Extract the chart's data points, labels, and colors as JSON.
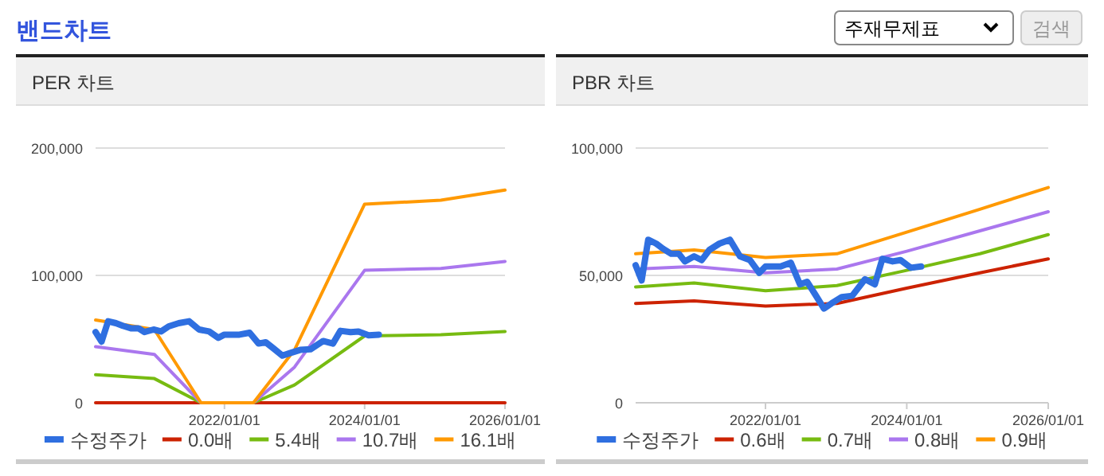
{
  "chart_data": [
    {
      "type": "other",
      "title": "밴드차트",
      "annotations": [
        "주재무제표",
        "검색"
      ]
    },
    {
      "type": "line",
      "title": "PER 차트",
      "legend": "bottom",
      "grid": "y",
      "xlim": [
        "2020-03-01",
        "2026-01-01"
      ],
      "ylim": [
        0,
        200000
      ],
      "yticks": [
        0,
        {
          "value": 100000,
          "label": "100,000"
        },
        {
          "value": 200000,
          "label": "200,000"
        }
      ],
      "xticks": [
        {
          "value": "2022-01-01",
          "label": "2022/01/01"
        },
        {
          "value": "2024-01-01",
          "label": "2024/01/01"
        },
        {
          "value": "2026-01-01",
          "label": "2026/01/01"
        }
      ],
      "series": [
        {
          "name": "수정주가",
          "color": "#2f6fe0",
          "x": [
            "2020-03-01",
            "2020-04-01",
            "2020-05-05",
            "2020-06-15",
            "2020-07-20",
            "2020-09-01",
            "2020-10-10",
            "2020-11-10",
            "2020-12-28",
            "2021-02-05",
            "2021-03-17",
            "2021-05-08",
            "2021-07-01",
            "2021-08-22",
            "2021-10-13",
            "2021-11-30",
            "2022-01-01",
            "2022-03-20",
            "2022-05-12",
            "2022-06-28",
            "2022-08-04",
            "2022-09-15",
            "2022-10-30",
            "2022-12-08",
            "2023-01-30",
            "2023-03-25",
            "2023-05-30",
            "2023-07-20",
            "2023-08-28",
            "2023-10-20",
            "2023-11-30",
            "2024-01-22",
            "2024-03-15"
          ],
          "values": [
            55500,
            48000,
            64000,
            62500,
            60500,
            58500,
            58500,
            55500,
            57500,
            56000,
            60000,
            62500,
            64000,
            57500,
            56000,
            51000,
            53500,
            53500,
            55000,
            46500,
            47500,
            42500,
            37000,
            39000,
            41500,
            42000,
            48500,
            46500,
            56500,
            55500,
            56000,
            53000,
            53500
          ]
        },
        {
          "name": "0.0배",
          "color": "#cc2200",
          "x": [
            "2020-03-01",
            "2021-01-01",
            "2021-09-01",
            "2022-06-01",
            "2023-01-01",
            "2024-01-01",
            "2025-02-01",
            "2026-01-01"
          ],
          "values": [
            0,
            0,
            0,
            0,
            0,
            0,
            0,
            0
          ]
        },
        {
          "name": "5.4배",
          "color": "#77bb11",
          "x": [
            "2020-03-01",
            "2021-01-01",
            "2021-09-01",
            "2022-06-01",
            "2023-01-01",
            "2024-01-01",
            "2025-02-01",
            "2026-01-01"
          ],
          "values": [
            22000,
            19000,
            0,
            0,
            14000,
            52500,
            53500,
            56000
          ]
        },
        {
          "name": "10.7배",
          "color": "#aa77ee",
          "x": [
            "2020-03-01",
            "2021-01-01",
            "2021-09-01",
            "2022-06-01",
            "2023-01-01",
            "2024-01-01",
            "2025-02-01",
            "2026-01-01"
          ],
          "values": [
            44000,
            38000,
            0,
            0,
            28000,
            104000,
            105500,
            111000
          ]
        },
        {
          "name": "16.1배",
          "color": "#ff9900",
          "x": [
            "2020-03-01",
            "2021-01-01",
            "2021-09-01",
            "2022-06-01",
            "2023-01-01",
            "2024-01-01",
            "2025-02-01",
            "2026-01-01"
          ],
          "values": [
            65000,
            57500,
            0,
            0,
            41500,
            156000,
            159000,
            167000
          ]
        }
      ]
    },
    {
      "type": "line",
      "title": "PBR 차트",
      "legend": "bottom",
      "grid": "y",
      "xlim": [
        "2020-03-01",
        "2026-01-01"
      ],
      "ylim": [
        0,
        100000
      ],
      "yticks": [
        0,
        {
          "value": 50000,
          "label": "50,000"
        },
        {
          "value": 100000,
          "label": "100,000"
        }
      ],
      "xticks": [
        {
          "value": "2022-01-01",
          "label": "2022/01/01"
        },
        {
          "value": "2024-01-01",
          "label": "2024/01/01"
        },
        {
          "value": "2026-01-01",
          "label": "2026/01/01"
        }
      ],
      "series": [
        {
          "name": "수정주가",
          "color": "#2f6fe0",
          "x": [
            "2020-03-01",
            "2020-04-01",
            "2020-05-05",
            "2020-06-15",
            "2020-07-20",
            "2020-09-01",
            "2020-10-10",
            "2020-11-10",
            "2020-12-28",
            "2021-02-05",
            "2021-03-17",
            "2021-05-08",
            "2021-07-01",
            "2021-08-22",
            "2021-10-13",
            "2021-11-30",
            "2022-01-01",
            "2022-03-20",
            "2022-05-12",
            "2022-06-28",
            "2022-08-04",
            "2022-09-15",
            "2022-10-30",
            "2022-12-08",
            "2023-01-30",
            "2023-03-25",
            "2023-05-30",
            "2023-07-20",
            "2023-08-28",
            "2023-10-20",
            "2023-11-30",
            "2024-01-22",
            "2024-03-15"
          ],
          "values": [
            54000,
            48000,
            64000,
            62500,
            60500,
            58500,
            58500,
            55500,
            57500,
            56000,
            60000,
            62500,
            64000,
            57500,
            56000,
            51000,
            53500,
            53500,
            55000,
            46500,
            47500,
            42500,
            37000,
            39000,
            41500,
            42000,
            48500,
            46500,
            56500,
            55500,
            56000,
            53000,
            53500
          ]
        },
        {
          "name": "0.6배",
          "color": "#cc2200",
          "x": [
            "2020-03-01",
            "2020-12-28",
            "2022-01-01",
            "2023-01-05",
            "2024-01-01",
            "2025-01-13",
            "2026-01-01"
          ],
          "values": [
            39000,
            40000,
            38000,
            39000,
            45000,
            51000,
            56500
          ]
        },
        {
          "name": "0.7배",
          "color": "#77bb11",
          "x": [
            "2020-03-01",
            "2020-12-28",
            "2022-01-01",
            "2023-01-05",
            "2024-01-01",
            "2025-01-13",
            "2026-01-01"
          ],
          "values": [
            45500,
            47000,
            44000,
            46000,
            52000,
            58500,
            66000
          ]
        },
        {
          "name": "0.8배",
          "color": "#aa77ee",
          "x": [
            "2020-03-01",
            "2020-12-28",
            "2022-01-01",
            "2023-01-05",
            "2024-01-01",
            "2025-01-13",
            "2026-01-01"
          ],
          "values": [
            52500,
            53500,
            51000,
            52500,
            59500,
            67500,
            75000
          ]
        },
        {
          "name": "0.9배",
          "color": "#ff9900",
          "x": [
            "2020-03-01",
            "2020-12-28",
            "2022-01-01",
            "2023-01-05",
            "2024-01-01",
            "2025-01-13",
            "2026-01-01"
          ],
          "values": [
            58500,
            60000,
            57000,
            58500,
            67000,
            76000,
            84500
          ]
        }
      ]
    }
  ]
}
